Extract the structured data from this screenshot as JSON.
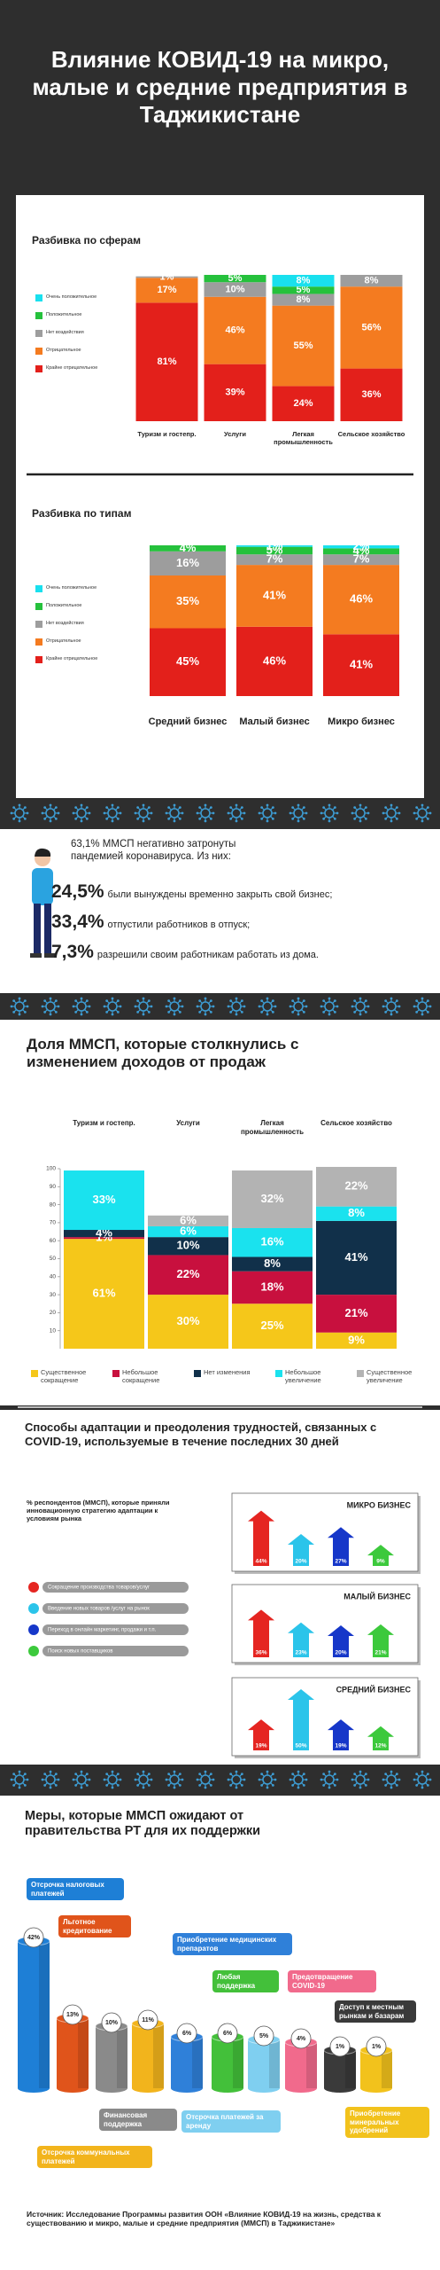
{
  "header": {
    "title": "Влияние КОВИД-19 на микро, малые и средние предприятия в Таджикистане"
  },
  "impact": {
    "lead": "63,1% ММСП негативно затронуты пандемией коронавируса. Из них:",
    "items": [
      {
        "value": "24,5%",
        "text": "были вынуждены временно закрыть свой бизнес;"
      },
      {
        "value": "33,4%",
        "text": "отпустили работников в отпуск;"
      },
      {
        "value": "7,3%",
        "text": "разрешили своим работникам работать из дома."
      }
    ]
  },
  "chart_data": [
    {
      "type": "stacked_bar",
      "title": "Разбивка по сферам",
      "categories": [
        "Туризм и гостепр.",
        "Услуги",
        "Легкая промышленность",
        "Сельское хозяйство"
      ],
      "series": [
        {
          "name": "Крайне отрицательное",
          "color": "#e3201b",
          "values": [
            81,
            39,
            24,
            36
          ],
          "value_labels": [
            "81%",
            "39%",
            "24%",
            "36%"
          ]
        },
        {
          "name": "Отрицательное",
          "color": "#f47b20",
          "values": [
            17,
            46,
            55,
            56
          ],
          "value_labels": [
            "17%",
            "46%",
            "55%",
            "56%"
          ]
        },
        {
          "name": "Нет воздействия",
          "color": "#9d9d9d",
          "values": [
            1,
            10,
            8,
            8
          ],
          "value_labels": [
            "1%",
            "10%",
            "8%",
            "8%"
          ]
        },
        {
          "name": "Положительное",
          "color": "#25c13c",
          "values": [
            null,
            5,
            5,
            null
          ],
          "value_labels": [
            null,
            "5%",
            "5%",
            null
          ]
        },
        {
          "name": "Очень положительное",
          "color": "#19e0ee",
          "values": [
            null,
            null,
            8,
            null
          ],
          "value_labels": [
            null,
            null,
            "8%",
            null
          ]
        }
      ]
    },
    {
      "type": "stacked_bar",
      "title": "Разбивка по типам",
      "categories": [
        "Средний бизнес",
        "Малый бизнес",
        "Микро бизнес"
      ],
      "series": [
        {
          "name": "Крайне отрицательное",
          "color": "#e3201b",
          "values": [
            45,
            46,
            41
          ],
          "value_labels": [
            "45%",
            "46%",
            "41%"
          ]
        },
        {
          "name": "Отрицательное",
          "color": "#f47b20",
          "values": [
            35,
            41,
            46
          ],
          "value_labels": [
            "35%",
            "41%",
            "46%"
          ]
        },
        {
          "name": "Нет воздействия",
          "color": "#9d9d9d",
          "values": [
            16,
            7,
            7
          ],
          "value_labels": [
            "16%",
            "7%",
            "7%"
          ]
        },
        {
          "name": "Положительное",
          "color": "#25c13c",
          "values": [
            4,
            5,
            4
          ],
          "value_labels": [
            "4%",
            "5%",
            "4%"
          ]
        },
        {
          "name": "Очень положительное",
          "color": "#19e0ee",
          "values": [
            null,
            1,
            2
          ],
          "value_labels": [
            null,
            "1%",
            "2%"
          ]
        }
      ]
    },
    {
      "type": "stacked_bar",
      "title": "Доля ММСП, которые столкнулись с изменением доходов от продаж",
      "categories": [
        "Туризм и гостепр.",
        "Услуги",
        "Легкая промышленность",
        "Сельское хозяйство"
      ],
      "ylim": [
        0,
        100
      ],
      "yticks": [
        10,
        20,
        30,
        40,
        50,
        60,
        70,
        80,
        90,
        100
      ],
      "series": [
        {
          "name": "Существенное сокращение",
          "color": "#f5c71a",
          "values": [
            61,
            30,
            25,
            9
          ],
          "value_labels": [
            "61%",
            "30%",
            "25%",
            "9%"
          ]
        },
        {
          "name": "Небольшое сокращение",
          "color": "#c8103e",
          "values": [
            1,
            22,
            18,
            21
          ],
          "value_labels": [
            "1%",
            "22%",
            "18%",
            "21%"
          ]
        },
        {
          "name": "Нет изменения",
          "color": "#11304a",
          "values": [
            4,
            10,
            8,
            41
          ],
          "value_labels": [
            "4%",
            "10%",
            "8%",
            "41%"
          ]
        },
        {
          "name": "Небольшое увеличение",
          "color": "#1ae2ee",
          "values": [
            33,
            6,
            16,
            8
          ],
          "value_labels": [
            "33%",
            "6%",
            "16%",
            "8%"
          ]
        },
        {
          "name": "Существенное увеличение",
          "color": "#b3b3b3",
          "values": [
            null,
            6,
            32,
            22
          ],
          "value_labels": [
            null,
            "6%",
            "32%",
            "22%"
          ]
        }
      ]
    },
    {
      "type": "arrow_bar",
      "title": "Способы адаптации и преодоления трудностей, связанных с COVID-19, используемые в течение последних 30 дней",
      "subtitle": "% респондентов (ММСП), которые приняли инновационную стратегию адаптации к условиям рынка",
      "categories": [
        "МИКРО БИЗНЕС",
        "МАЛЫЙ БИЗНЕС",
        "СРЕДНИЙ БИЗНЕС"
      ],
      "series": [
        {
          "name": "Сокращение производства товаров/услуг",
          "color": "#e52521",
          "values": [
            44,
            36,
            19
          ],
          "value_labels": [
            "44%",
            "36%",
            "19%"
          ]
        },
        {
          "name": "Введение новых товаров /услуг на рынок",
          "color": "#2bc4ea",
          "values": [
            20,
            23,
            50
          ],
          "value_labels": [
            "20%",
            "23%",
            "50%"
          ]
        },
        {
          "name": "Переход в онлайн маркетинг, продажи и т.п.",
          "color": "#1637c9",
          "values": [
            27,
            20,
            19
          ],
          "value_labels": [
            "27%",
            "20%",
            "19%"
          ]
        },
        {
          "name": "Поиск новых поставщиков",
          "color": "#3cc93c",
          "values": [
            9,
            21,
            12
          ],
          "value_labels": [
            "9%",
            "21%",
            "12%"
          ]
        }
      ]
    },
    {
      "type": "cylinder",
      "title": "Меры, которые ММСП ожидают от правительства РТ для их поддержки",
      "categories": [
        "Отсрочка налоговых платежей",
        "Льготное кредитование",
        "Финансовая поддержка",
        "Отсрочка коммунальных платежей",
        "Приобретение медицинских препаратов",
        "Любая поддержка",
        "Отсрочка платежей за аренду",
        "Предотвращение COVID-19",
        "Доступ к местным рынкам и базарам",
        "Приобретение минеральных удобрений"
      ],
      "values": [
        42,
        13,
        10,
        11,
        6,
        6,
        5,
        4,
        1,
        1
      ],
      "value_labels": [
        "42%",
        "13%",
        "10%",
        "11%",
        "6%",
        "6%",
        "5%",
        "4%",
        "1%",
        "1%"
      ],
      "colors": [
        "#1e7fd6",
        "#e0541b",
        "#8a8a8a",
        "#f2b41c",
        "#2f80d9",
        "#43c03a",
        "#7fcff0",
        "#f16a8c",
        "#3a3a3a",
        "#f2c21c"
      ]
    }
  ],
  "source": "Источник: Исследование Программы развития ООН «Влияние КОВИД-19 на жизнь, средства к существованию и микро, малые и средние предприятия (ММСП) в Таджикистане»"
}
